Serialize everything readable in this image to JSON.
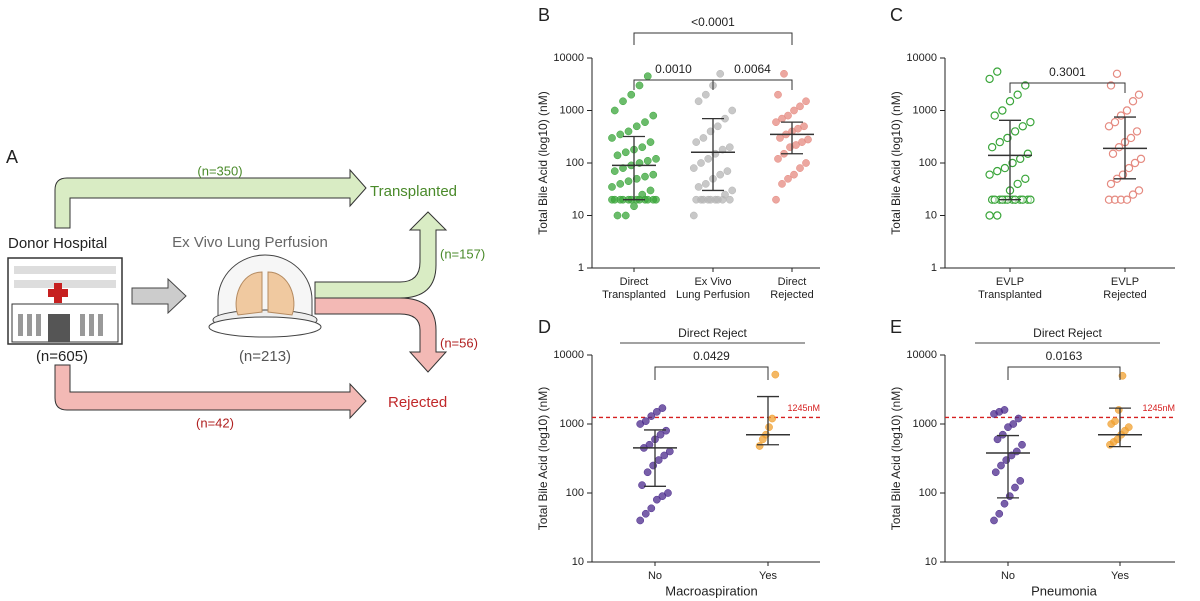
{
  "panel_a": {
    "label": "A",
    "donor": "Donor Hospital",
    "donor_n": "(n=605)",
    "evlp": "Ex Vivo Lung Perfusion",
    "evlp_n": "(n=213)",
    "transplanted": "Transplanted",
    "rejected": "Rejected",
    "flows": [
      "(n=350)",
      "(n=157)",
      "(n=56)",
      "(n=42)"
    ]
  },
  "chart_data": [
    {
      "type": "scatter",
      "panel": "B",
      "ylabel": "Total Bile Acid (log10) (nM)",
      "log": true,
      "ylim": [
        1,
        10000
      ],
      "yticks": [
        1,
        10,
        100,
        1000,
        10000
      ],
      "categories": [
        [
          "Direct",
          "Transplanted"
        ],
        [
          "Ex Vivo",
          "Lung Perfusion"
        ],
        [
          "Direct",
          "Rejected"
        ]
      ],
      "open_markers": false,
      "series": [
        {
          "color": "#3aa53a",
          "values": [
            20,
            20,
            20,
            20,
            20,
            20,
            20,
            20,
            20,
            20,
            20,
            20,
            10,
            10,
            15,
            25,
            30,
            35,
            40,
            45,
            50,
            55,
            60,
            70,
            80,
            90,
            100,
            110,
            120,
            140,
            160,
            180,
            200,
            250,
            300,
            350,
            400,
            500,
            600,
            800,
            1000,
            1500,
            2000,
            3000,
            4500
          ],
          "center": 90,
          "lower": 20,
          "upper": 320
        },
        {
          "color": "#b5b5b5",
          "values": [
            10,
            20,
            20,
            20,
            20,
            20,
            20,
            20,
            20,
            20,
            25,
            30,
            35,
            40,
            50,
            60,
            70,
            80,
            100,
            120,
            150,
            180,
            200,
            250,
            300,
            400,
            500,
            700,
            1000,
            1500,
            2000,
            3000,
            5000
          ],
          "center": 160,
          "lower": 30,
          "upper": 700
        },
        {
          "color": "#e58a80",
          "values": [
            20,
            40,
            50,
            60,
            80,
            100,
            120,
            150,
            200,
            220,
            250,
            280,
            300,
            350,
            400,
            450,
            500,
            600,
            700,
            800,
            1000,
            1200,
            1500,
            2000,
            5000
          ],
          "center": 350,
          "lower": 150,
          "upper": 600
        }
      ],
      "comparisons": [
        {
          "label": "0.0010",
          "groups": [
            0,
            1
          ]
        },
        {
          "label": "0.0064",
          "groups": [
            1,
            2
          ]
        },
        {
          "label": "<0.0001",
          "groups": [
            0,
            2
          ]
        }
      ]
    },
    {
      "type": "scatter",
      "panel": "C",
      "ylabel": "Total Bile Acid (log10) (nM)",
      "log": true,
      "ylim": [
        1,
        10000
      ],
      "yticks": [
        1,
        10,
        100,
        1000,
        10000
      ],
      "categories": [
        [
          "EVLP",
          "Transplanted"
        ],
        [
          "EVLP",
          "Rejected"
        ]
      ],
      "open_markers": true,
      "series": [
        {
          "color": "#3aa53a",
          "values": [
            10,
            10,
            20,
            20,
            20,
            20,
            20,
            20,
            20,
            20,
            20,
            20,
            20,
            20,
            30,
            40,
            50,
            60,
            70,
            80,
            100,
            120,
            150,
            200,
            250,
            300,
            400,
            500,
            600,
            800,
            1000,
            1500,
            2000,
            3000,
            4000,
            5500
          ],
          "center": 140,
          "lower": 20,
          "upper": 650
        },
        {
          "color": "#e58a80",
          "values": [
            20,
            20,
            20,
            20,
            25,
            30,
            40,
            50,
            60,
            80,
            100,
            120,
            150,
            200,
            250,
            300,
            400,
            500,
            600,
            800,
            1000,
            1500,
            2000,
            3000,
            5000
          ],
          "center": 190,
          "lower": 50,
          "upper": 750
        }
      ],
      "comparisons": [
        {
          "label": "0.3001",
          "groups": [
            0,
            1
          ]
        }
      ]
    },
    {
      "type": "scatter",
      "panel": "D",
      "ylabel": "Total Bile Acid (log10) (nM)",
      "xlabel": "Macroaspiration",
      "group_label": "Direct Reject",
      "log": true,
      "ylim": [
        10,
        10000
      ],
      "yticks": [
        10,
        100,
        1000,
        10000
      ],
      "categories": [
        [
          "No"
        ],
        [
          "Yes"
        ]
      ],
      "open_markers": false,
      "reference": {
        "value": 1245,
        "label": "1245nM",
        "color": "#d62020"
      },
      "series": [
        {
          "color": "#4b2a8c",
          "values": [
            40,
            50,
            60,
            80,
            90,
            100,
            130,
            200,
            250,
            300,
            350,
            400,
            450,
            500,
            600,
            700,
            800,
            1000,
            1100,
            1300,
            1500,
            1700
          ],
          "center": 450,
          "lower": 125,
          "upper": 820
        },
        {
          "color": "#f0a030",
          "values": [
            480,
            600,
            700,
            900,
            1200,
            5200
          ],
          "center": 700,
          "lower": 500,
          "upper": 2500
        }
      ],
      "comparisons": [
        {
          "label": "0.0429",
          "groups": [
            0,
            1
          ]
        }
      ]
    },
    {
      "type": "scatter",
      "panel": "E",
      "ylabel": "Total Bile Acid (log10) (nM)",
      "xlabel": "Pneumonia",
      "group_label": "Direct Reject",
      "log": true,
      "ylim": [
        10,
        10000
      ],
      "yticks": [
        10,
        100,
        1000,
        10000
      ],
      "categories": [
        [
          "No"
        ],
        [
          "Yes"
        ]
      ],
      "open_markers": false,
      "reference": {
        "value": 1245,
        "label": "1245nM",
        "color": "#d62020"
      },
      "series": [
        {
          "color": "#4b2a8c",
          "values": [
            40,
            50,
            70,
            90,
            120,
            150,
            200,
            250,
            300,
            350,
            400,
            500,
            600,
            700,
            900,
            1000,
            1200,
            1400,
            1500,
            1600
          ],
          "center": 380,
          "lower": 85,
          "upper": 680
        },
        {
          "color": "#f0a030",
          "values": [
            500,
            550,
            600,
            700,
            800,
            900,
            1000,
            1100,
            1600,
            5000
          ],
          "center": 700,
          "lower": 470,
          "upper": 1700
        }
      ],
      "comparisons": [
        {
          "label": "0.0163",
          "groups": [
            0,
            1
          ]
        }
      ]
    }
  ]
}
